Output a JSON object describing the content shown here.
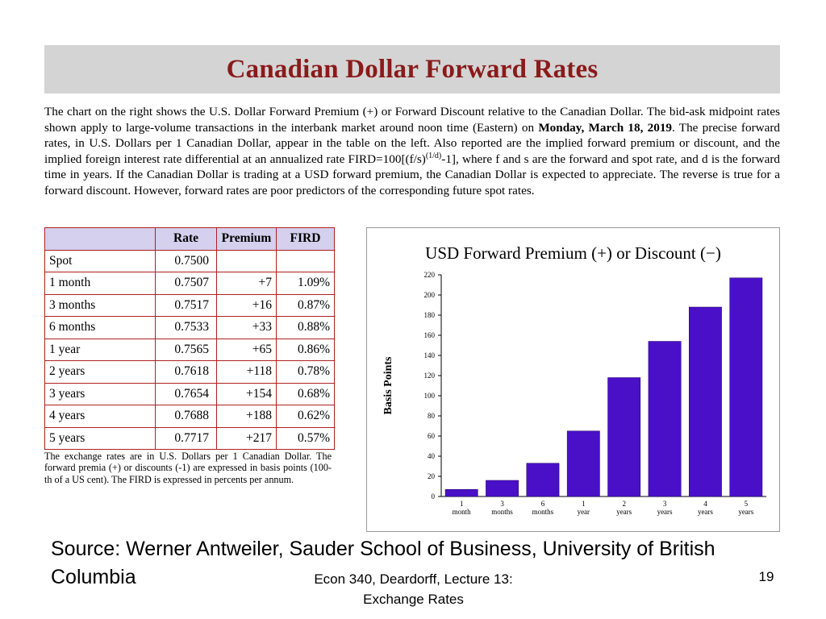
{
  "slide": {
    "title": "Canadian Dollar Forward Rates",
    "intro": {
      "part1": "The chart on the right shows the U.S. Dollar Forward Premium (+) or Forward Discount relative to the Canadian Dollar. The bid-ask midpoint rates shown apply to large-volume transactions in the interbank market around noon time (Eastern) on ",
      "date": "Monday, March 18, 2019",
      "part2": ". The precise forward rates, in U.S. Dollars per 1 Canadian Dollar, appear in the table on the left. Also reported are the implied forward premium or discount, and the implied foreign interest rate differential at an annualized rate FIRD=100[(f/s)",
      "exponent": "(1/d)",
      "part3": "-1], where f and s are the forward and spot rate, and d is the forward time in years. If the Canadian Dollar is trading at a USD forward premium, the Canadian Dollar is expected to appreciate. The reverse is true for a forward discount. However, forward rates are poor predictors of the corresponding future spot rates."
    },
    "table": {
      "headers": [
        "",
        "Rate",
        "Premium",
        "FIRD"
      ],
      "rows": [
        {
          "term": "Spot",
          "rate": "0.7500",
          "premium": "",
          "fird": ""
        },
        {
          "term": "1 month",
          "rate": "0.7507",
          "premium": "+7",
          "fird": "1.09%"
        },
        {
          "term": "3 months",
          "rate": "0.7517",
          "premium": "+16",
          "fird": "0.87%"
        },
        {
          "term": "6 months",
          "rate": "0.7533",
          "premium": "+33",
          "fird": "0.88%"
        },
        {
          "term": "1 year",
          "rate": "0.7565",
          "premium": "+65",
          "fird": "0.86%"
        },
        {
          "term": "2 years",
          "rate": "0.7618",
          "premium": "+118",
          "fird": "0.78%"
        },
        {
          "term": "3 years",
          "rate": "0.7654",
          "premium": "+154",
          "fird": "0.68%"
        },
        {
          "term": "4 years",
          "rate": "0.7688",
          "premium": "+188",
          "fird": "0.62%"
        },
        {
          "term": "5 years",
          "rate": "0.7717",
          "premium": "+217",
          "fird": "0.57%"
        }
      ],
      "note": "The exchange rates are in U.S. Dollars per 1 Canadian Dollar. The forward premia (+) or discounts (-1) are expressed in basis points (100-th of a US cent). The FIRD is expressed in percents per annum."
    },
    "source_text": "Source:  Werner Antweiler, Sauder School of Business, University of British Columbia",
    "footer": {
      "line1": "Econ 340, Deardorff, Lecture 13:",
      "line2": "Exchange Rates"
    },
    "page_number": "19"
  },
  "colors": {
    "title": "#8b1a1a",
    "title_bar": "#d4d4d4",
    "table_border": "#b02020",
    "table_header": "#d4d0ee",
    "bar_fill": "#4a10c8"
  },
  "chart_data": {
    "type": "bar",
    "title": "USD Forward Premium (+) or Discount (−)",
    "ylabel": "Basis Points",
    "xlabel": "",
    "categories": [
      [
        "1",
        "month"
      ],
      [
        "3",
        "months"
      ],
      [
        "6",
        "months"
      ],
      [
        "1",
        "year"
      ],
      [
        "2",
        "years"
      ],
      [
        "3",
        "years"
      ],
      [
        "4",
        "years"
      ],
      [
        "5",
        "years"
      ]
    ],
    "values": [
      7,
      16,
      33,
      65,
      118,
      154,
      188,
      217
    ],
    "ylim": [
      0,
      220
    ],
    "yticks": [
      0,
      20,
      40,
      60,
      80,
      100,
      120,
      140,
      160,
      180,
      200,
      220
    ],
    "grid": false,
    "legend": "none"
  }
}
